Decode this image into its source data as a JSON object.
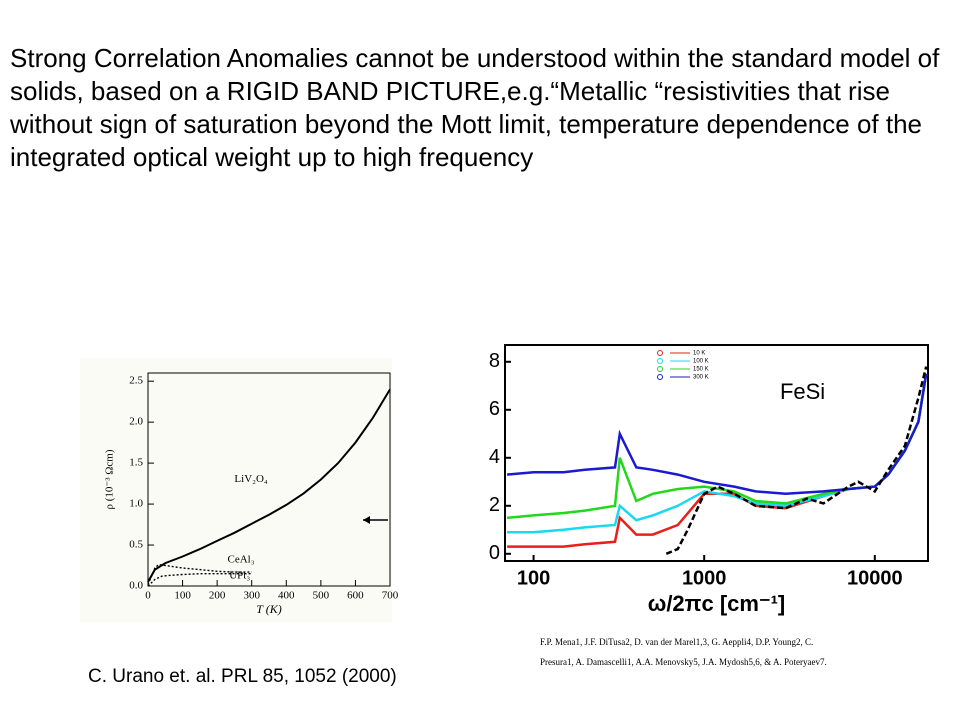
{
  "text": "Strong Correlation Anomalies  cannot be understood within the standard model of  solids, based on a RIGID BAND PICTURE,e.g.“Metallic “resistivities that rise without sign of saturation beyond the Mott limit, temperature dependence of the integrated optical weight  up to high frequency",
  "citation": "C. Urano et. al. PRL 85, 1052 (2000)",
  "authors": "F.P. Mena1, J.F. DiTusa2, D. van der Marel1,3, G. Aeppli4, D.P. Young2, C. Presura1, A. Damascelli1, A.A. Menovsky5, J.A. Mydosh5,6, & A. Poteryaev7.",
  "chart_data": [
    {
      "type": "line",
      "x_label": "T (K)",
      "y_label": "ρ (10⁻³ Ωcm)",
      "xlim": [
        0,
        700
      ],
      "xticks": [
        0,
        100,
        200,
        300,
        400,
        500,
        600,
        700
      ],
      "ylim": [
        0,
        2.6
      ],
      "yticks": [
        {
          "value": 0,
          "label": "0.0"
        },
        0.5,
        {
          "value": 1,
          "label": "1.0"
        },
        1.5,
        {
          "value": 2,
          "label": "2.0"
        },
        2.5
      ],
      "series": [
        {
          "name": "LiV₂O₄",
          "color": "#000000",
          "x": [
            0,
            20,
            50,
            100,
            150,
            200,
            250,
            300,
            350,
            400,
            450,
            500,
            550,
            600,
            650,
            700
          ],
          "values": [
            0.05,
            0.2,
            0.28,
            0.36,
            0.45,
            0.55,
            0.65,
            0.76,
            0.87,
            0.99,
            1.13,
            1.3,
            1.5,
            1.75,
            2.05,
            2.4
          ]
        },
        {
          "name": "CeAl₃",
          "color": "#000000",
          "x": [
            0,
            10,
            20,
            30,
            50,
            100,
            150,
            200,
            250,
            300
          ],
          "values": [
            0.02,
            0.12,
            0.22,
            0.26,
            0.25,
            0.22,
            0.2,
            0.18,
            0.17,
            0.17
          ]
        },
        {
          "name": "UPt₃",
          "color": "#000000",
          "x": [
            0,
            10,
            20,
            40,
            60,
            100,
            150,
            200,
            250,
            300
          ],
          "values": [
            0.0,
            0.04,
            0.08,
            0.12,
            0.13,
            0.14,
            0.15,
            0.15,
            0.15,
            0.15
          ]
        }
      ]
    },
    {
      "type": "line",
      "title": "FeSi",
      "x_label": "ω/2πc [cm⁻¹]",
      "log_x": true,
      "xlim": [
        68,
        20500
      ],
      "xticks": [
        100,
        1000,
        10000
      ],
      "ylim": [
        -0.3,
        8.7
      ],
      "yticks": [
        0,
        2,
        4,
        6,
        8
      ],
      "series": [
        {
          "name": "10 K",
          "color": "#e8201a",
          "x": [
            70,
            100,
            150,
            200,
            300,
            320,
            400,
            500,
            700,
            1000,
            1500,
            2000,
            3000,
            5000,
            7000,
            10000,
            12000,
            15000,
            18000,
            20000
          ],
          "values": [
            0.3,
            0.3,
            0.3,
            0.4,
            0.5,
            1.5,
            0.8,
            0.8,
            1.2,
            2.5,
            2.5,
            2.0,
            1.9,
            2.4,
            2.7,
            2.8,
            3.3,
            4.3,
            5.5,
            7.5
          ]
        },
        {
          "name": "100 K",
          "color": "#1ad8f0",
          "x": [
            70,
            100,
            150,
            200,
            300,
            320,
            400,
            500,
            700,
            1000,
            1500,
            2000,
            3000,
            5000,
            7000,
            10000,
            12000,
            15000,
            18000,
            20000
          ],
          "values": [
            0.9,
            0.9,
            1.0,
            1.1,
            1.2,
            2.0,
            1.4,
            1.6,
            2.0,
            2.6,
            2.4,
            2.1,
            2.0,
            2.4,
            2.7,
            2.8,
            3.3,
            4.3,
            5.5,
            7.5
          ]
        },
        {
          "name": "150 K",
          "color": "#22d81a",
          "x": [
            70,
            100,
            150,
            200,
            300,
            320,
            400,
            500,
            700,
            1000,
            1500,
            2000,
            3000,
            5000,
            7000,
            10000,
            12000,
            15000,
            18000,
            20000
          ],
          "values": [
            1.5,
            1.6,
            1.7,
            1.8,
            2.0,
            4.0,
            2.2,
            2.5,
            2.7,
            2.8,
            2.6,
            2.2,
            2.1,
            2.5,
            2.7,
            2.8,
            3.3,
            4.3,
            5.5,
            7.5
          ]
        },
        {
          "name": "300 K",
          "color": "#1a1ad0",
          "x": [
            70,
            100,
            150,
            200,
            300,
            320,
            400,
            500,
            700,
            1000,
            1500,
            2000,
            3000,
            5000,
            7000,
            10000,
            12000,
            15000,
            18000,
            20000
          ],
          "values": [
            3.3,
            3.4,
            3.4,
            3.5,
            3.6,
            5.0,
            3.6,
            3.5,
            3.3,
            3.0,
            2.8,
            2.6,
            2.5,
            2.6,
            2.7,
            2.8,
            3.3,
            4.3,
            5.5,
            7.5
          ]
        },
        {
          "color": "#000000",
          "dashed": true,
          "x": [
            600,
            700,
            800,
            1000,
            1200,
            1500,
            2000,
            3000,
            4000,
            5000,
            7000,
            8000,
            10000,
            12000,
            15000,
            18000,
            20000
          ],
          "values": [
            0,
            0.2,
            1.0,
            2.5,
            2.8,
            2.5,
            2.0,
            1.9,
            2.3,
            2.1,
            2.8,
            3.0,
            2.6,
            3.5,
            4.5,
            6.5,
            7.8
          ]
        }
      ]
    }
  ]
}
